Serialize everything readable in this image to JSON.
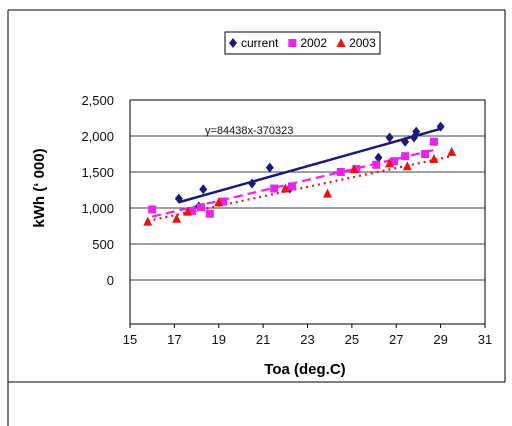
{
  "chart_data": {
    "type": "scatter",
    "xlabel": "Toa (deg.C)",
    "ylabel": "kWh (‘ 000)",
    "xlim": [
      15,
      31
    ],
    "ylim": [
      0,
      2500
    ],
    "x_ticks": [
      "15",
      "17",
      "19",
      "21",
      "23",
      "25",
      "27",
      "29",
      "31"
    ],
    "y_ticks": [
      "0",
      "500",
      "1,000",
      "1,500",
      "2,000",
      "2,500"
    ],
    "grid": "horizontal",
    "legend_position": "top",
    "annotation": "y=84438x-370323",
    "series": [
      {
        "name": "current",
        "marker": "diamond",
        "color": "#1a1a7a",
        "trendline": {
          "style": "solid",
          "from": [
            17.2,
            1080
          ],
          "to": [
            29.0,
            2100
          ]
        },
        "points": [
          [
            17.2,
            1130
          ],
          [
            18.1,
            1020
          ],
          [
            18.3,
            1260
          ],
          [
            20.5,
            1340
          ],
          [
            21.3,
            1560
          ],
          [
            22.2,
            1270
          ],
          [
            26.2,
            1700
          ],
          [
            26.7,
            1980
          ],
          [
            27.4,
            1920
          ],
          [
            27.8,
            1980
          ],
          [
            27.9,
            2060
          ],
          [
            29.0,
            2130
          ]
        ]
      },
      {
        "name": "2002",
        "marker": "square",
        "color": "#ee22ee",
        "trendline": {
          "style": "dashed",
          "from": [
            16.0,
            880
          ],
          "to": [
            28.9,
            1820
          ]
        },
        "points": [
          [
            16.0,
            980
          ],
          [
            17.8,
            960
          ],
          [
            18.2,
            1010
          ],
          [
            18.6,
            920
          ],
          [
            19.2,
            1090
          ],
          [
            21.5,
            1270
          ],
          [
            22.3,
            1300
          ],
          [
            24.5,
            1500
          ],
          [
            25.2,
            1540
          ],
          [
            26.1,
            1600
          ],
          [
            26.9,
            1650
          ],
          [
            27.4,
            1720
          ],
          [
            28.3,
            1750
          ],
          [
            28.7,
            1920
          ]
        ]
      },
      {
        "name": "2003",
        "marker": "triangle",
        "color": "#ee1111",
        "trendline": {
          "style": "dotted",
          "from": [
            15.8,
            820
          ],
          "to": [
            29.5,
            1720
          ]
        },
        "points": [
          [
            15.8,
            810
          ],
          [
            17.1,
            850
          ],
          [
            17.6,
            950
          ],
          [
            19.0,
            1080
          ],
          [
            22.0,
            1270
          ],
          [
            23.9,
            1200
          ],
          [
            25.1,
            1540
          ],
          [
            26.7,
            1620
          ],
          [
            27.5,
            1580
          ],
          [
            28.7,
            1680
          ],
          [
            29.5,
            1780
          ]
        ]
      }
    ]
  }
}
